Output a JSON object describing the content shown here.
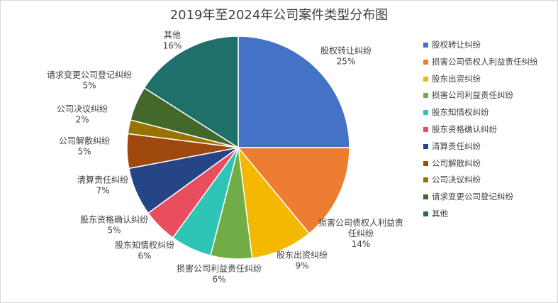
{
  "chart_data": {
    "type": "pie",
    "title": "2019年至2024年公司案件类型分布图",
    "slices": [
      {
        "name": "股权转让纠纷",
        "value": 25,
        "label_lines": [
          "股权转让纠纷",
          "25%"
        ],
        "color": "#4472C4"
      },
      {
        "name": "损害公司债权人利益责任纠纷",
        "value": 14,
        "label_lines": [
          "损害公司债权人利益责",
          "任纠纷",
          "14%"
        ],
        "color": "#ED7D31"
      },
      {
        "name": "股东出资纠纷",
        "value": 9,
        "label_lines": [
          "股东出资纠纷",
          "9%"
        ],
        "color": "#F4B800"
      },
      {
        "name": "损害公司利益责任纠纷",
        "value": 6,
        "label_lines": [
          "损害公司利益责任纠纷",
          "6%"
        ],
        "color": "#70AD47"
      },
      {
        "name": "股东知情权纠纷",
        "value": 6,
        "label_lines": [
          "股东知情权纠纷",
          "6%"
        ],
        "color": "#2EC4B6"
      },
      {
        "name": "股东资格确认纠纷",
        "value": 5,
        "label_lines": [
          "股东资格确认纠纷",
          "5%"
        ],
        "color": "#E84E5E"
      },
      {
        "name": "清算责任纠纷",
        "value": 7,
        "label_lines": [
          "清算责任纠纷",
          "7%"
        ],
        "color": "#254586"
      },
      {
        "name": "公司解散纠纷",
        "value": 5,
        "label_lines": [
          "公司解散纠纷",
          "5%"
        ],
        "color": "#9E480E"
      },
      {
        "name": "公司决议纠纷",
        "value": 2,
        "label_lines": [
          "公司决议纠纷",
          "2%"
        ],
        "color": "#997300"
      },
      {
        "name": "请求变更公司登记纠纷",
        "value": 5,
        "label_lines": [
          "请求变更公司登记纠纷",
          "5%"
        ],
        "color": "#43682B"
      },
      {
        "name": "其他",
        "value": 16,
        "label_lines": [
          "其他",
          "16%"
        ],
        "color": "#1F6F6B"
      }
    ],
    "legend_position": "right"
  }
}
